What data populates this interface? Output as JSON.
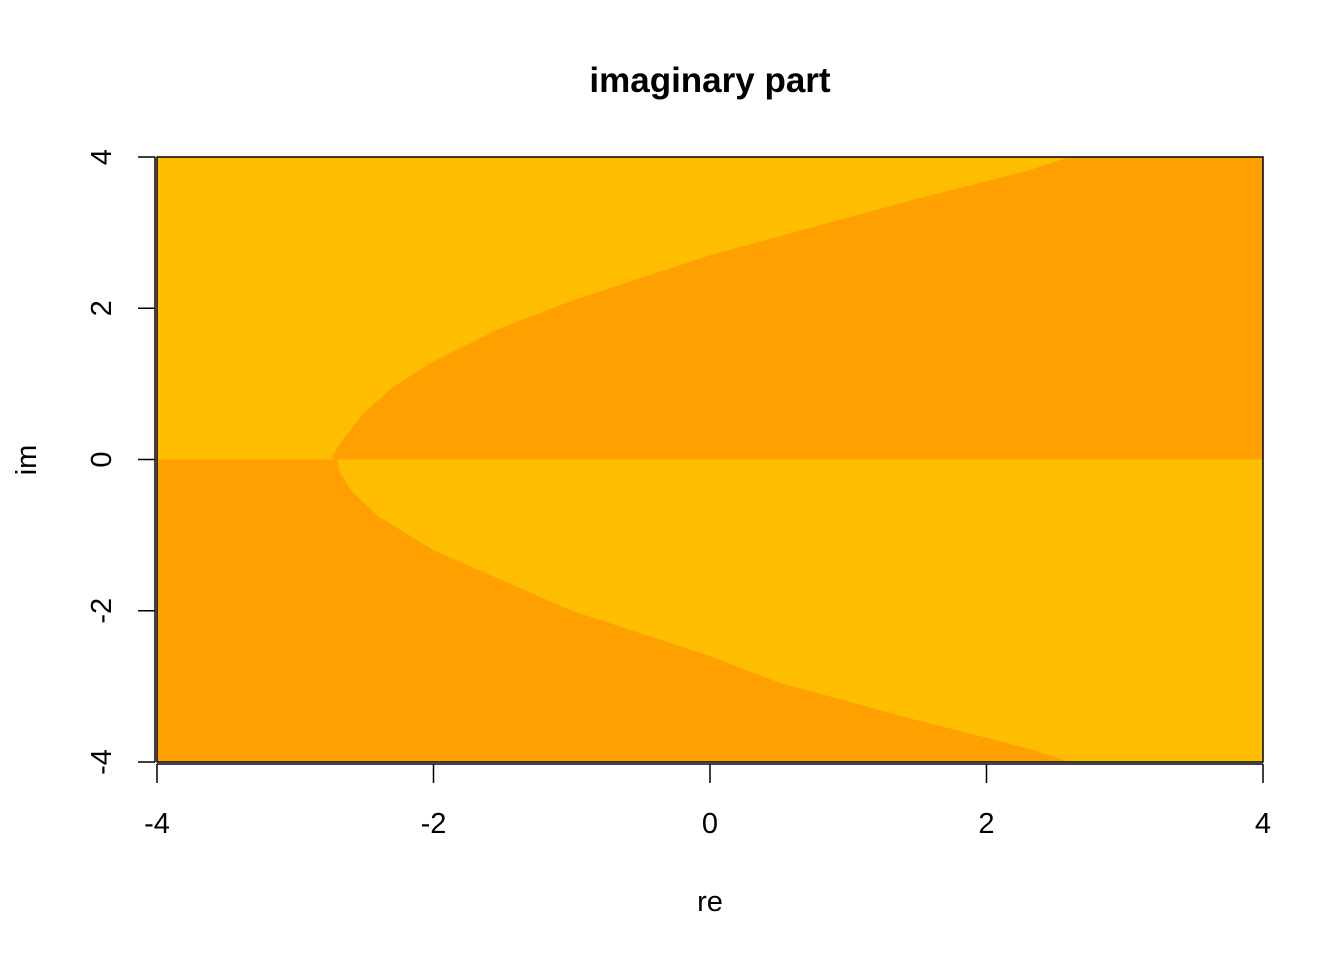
{
  "chart_data": {
    "type": "heatmap",
    "title": "imaginary part",
    "xlabel": "re",
    "ylabel": "im",
    "xlim": [
      -4,
      4
    ],
    "ylim": [
      -4,
      4
    ],
    "x_ticks": [
      -4,
      -2,
      0,
      2,
      4
    ],
    "y_ticks": [
      -4,
      -2,
      0,
      2,
      4
    ],
    "x_tick_labels": [
      "-4",
      "-2",
      "0",
      "2",
      "4"
    ],
    "y_tick_labels": [
      "-4",
      "-2",
      "0",
      "2",
      "4"
    ],
    "grid": false,
    "colors": {
      "low": "#FF9F00",
      "high": "#FFBF00"
    },
    "regions": [
      {
        "color_key": "low",
        "boundary": [
          [
            -2.73,
            0.06
          ],
          [
            -2.65,
            0.28
          ],
          [
            -2.5,
            0.62
          ],
          [
            -2.3,
            0.95
          ],
          [
            -2.0,
            1.3
          ],
          [
            -1.5,
            1.75
          ],
          [
            -1.0,
            2.1
          ],
          [
            -0.5,
            2.4
          ],
          [
            0.0,
            2.7
          ],
          [
            0.5,
            2.95
          ],
          [
            1.0,
            3.2
          ],
          [
            1.5,
            3.45
          ],
          [
            2.0,
            3.68
          ],
          [
            2.3,
            3.82
          ],
          [
            2.6,
            4.0
          ],
          [
            4.0,
            4.0
          ],
          [
            4.0,
            0.0
          ],
          [
            -2.73,
            0.0
          ]
        ]
      },
      {
        "color_key": "low",
        "boundary": [
          [
            -4.0,
            0.0
          ],
          [
            -2.69,
            0.0
          ],
          [
            -2.69,
            -0.12
          ],
          [
            -2.6,
            -0.4
          ],
          [
            -2.4,
            -0.75
          ],
          [
            -2.0,
            -1.2
          ],
          [
            -1.5,
            -1.6
          ],
          [
            -1.0,
            -2.0
          ],
          [
            -0.5,
            -2.3
          ],
          [
            0.0,
            -2.6
          ],
          [
            0.5,
            -2.95
          ],
          [
            1.0,
            -3.2
          ],
          [
            1.5,
            -3.45
          ],
          [
            2.0,
            -3.68
          ],
          [
            2.3,
            -3.82
          ],
          [
            2.6,
            -4.0
          ],
          [
            -4.0,
            -4.0
          ]
        ]
      }
    ]
  }
}
